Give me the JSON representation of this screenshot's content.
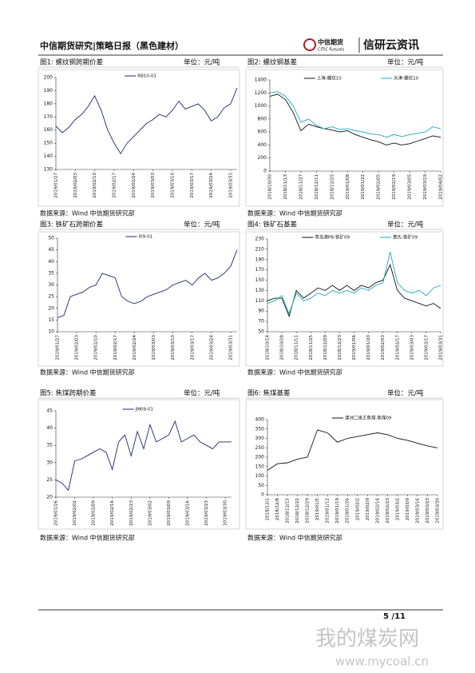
{
  "header": {
    "title": "中信期货研究|策略日报（黑色建材）",
    "logo_cn": "中信期货",
    "logo_en": "CITIC Futures",
    "brand": "信研云资讯"
  },
  "footer": {
    "page": "5 /11"
  },
  "watermark": {
    "cn": "我的煤炭网",
    "url": "www.mycoal.cn"
  },
  "chart_data": [
    {
      "type": "line",
      "title": "图1: 螺纹钢跨期价差",
      "unit": "单位：元/吨",
      "source": "数据来源：Wind  中信期货研究部",
      "categories": [
        "2019/01/27",
        null,
        null,
        "2019/02/03",
        null,
        null,
        "2019/02/10",
        null,
        null,
        "2019/02/17",
        null,
        null,
        "2019/02/24",
        null,
        null,
        "2019/03/03",
        null,
        null,
        "2019/03/10",
        null,
        null,
        "2019/03/17",
        null,
        null,
        "2019/03/24",
        null,
        null,
        "2019/03/31",
        null
      ],
      "series": [
        {
          "name": "RB10-01",
          "color": "#1a2a6c",
          "values": [
            163,
            158,
            162,
            168,
            172,
            178,
            186,
            175,
            160,
            150,
            142,
            150,
            155,
            160,
            165,
            168,
            172,
            170,
            175,
            182,
            176,
            178,
            180,
            175,
            167,
            170,
            177,
            180,
            192
          ]
        }
      ],
      "ylim": [
        130,
        200
      ],
      "yticks": [
        130,
        140,
        150,
        160,
        170,
        180,
        190,
        200
      ]
    },
    {
      "type": "line",
      "title": "图2: 螺纹钢基差",
      "unit": "单位：元/吨",
      "source": "数据来源：Wind  中信期货研究部",
      "categories": [
        "2018/10/30",
        null,
        "2018/11/13",
        null,
        "2018/11/27",
        null,
        "2018/12/11",
        null,
        "2018/12/25",
        null,
        "2019/01/08",
        null,
        "2019/01/22",
        null,
        "2019/02/05",
        null,
        "2019/02/19",
        null,
        "2019/03/05",
        null,
        "2019/03/19",
        null,
        "2019/04/02"
      ],
      "series": [
        {
          "name": "上海-螺纹10",
          "color": "#111111",
          "values": [
            1150,
            1180,
            1100,
            900,
            620,
            720,
            680,
            650,
            630,
            600,
            620,
            560,
            520,
            480,
            450,
            400,
            430,
            400,
            420,
            460,
            500,
            540,
            520
          ]
        },
        {
          "name": "天津-螺纹10",
          "color": "#19a7c0",
          "values": [
            1200,
            1220,
            1150,
            1000,
            750,
            800,
            700,
            650,
            680,
            640,
            650,
            620,
            600,
            570,
            560,
            520,
            560,
            530,
            560,
            580,
            600,
            680,
            650
          ]
        }
      ],
      "ylim": [
        0,
        1400
      ],
      "yticks": [
        0,
        200,
        400,
        600,
        800,
        1000,
        1200,
        1400
      ]
    },
    {
      "type": "line",
      "title": "图3: 铁矿石跨期价差",
      "unit": "单位：元/吨",
      "source": "数据来源：Wind  中信期货研究部",
      "categories": [
        "2019/01/27",
        null,
        null,
        "2019/02/03",
        null,
        null,
        "2019/02/10",
        null,
        null,
        "2019/02/17",
        null,
        null,
        "2019/02/24",
        null,
        null,
        "2019/03/03",
        null,
        null,
        "2019/03/10",
        null,
        null,
        "2019/03/17",
        null,
        null,
        "2019/03/24",
        null,
        null,
        "2019/03/31",
        null
      ],
      "series": [
        {
          "name": "I09-01",
          "color": "#1a2a6c",
          "values": [
            16,
            17,
            25,
            26,
            27,
            29,
            30,
            35,
            34,
            33,
            25,
            23,
            22,
            23,
            25,
            26,
            27,
            28,
            30,
            31,
            32,
            30,
            33,
            35,
            32,
            33,
            35,
            38,
            45
          ]
        }
      ],
      "ylim": [
        10,
        50
      ],
      "yticks": [
        10,
        15,
        20,
        25,
        30,
        35,
        40,
        45,
        50
      ]
    },
    {
      "type": "line",
      "title": "图4: 铁矿石基差",
      "unit": "单位：元/吨",
      "source": "数据来源：Wind  中信期货研究部",
      "categories": [
        "2018/10/14",
        null,
        "2018/10/28",
        null,
        "2018/11/11",
        null,
        "2018/11/25",
        null,
        "2018/12/09",
        null,
        "2018/12/23",
        null,
        "2019/01/06",
        null,
        "2019/01/20",
        null,
        "2019/02/03",
        null,
        "2019/02/17",
        null,
        "2019/03/03",
        null,
        "2019/03/17",
        null,
        "2019/03/31"
      ],
      "series": [
        {
          "name": "青岛港PB-铁矿09",
          "color": "#111111",
          "values": [
            110,
            115,
            115,
            80,
            130,
            115,
            125,
            135,
            130,
            140,
            130,
            140,
            130,
            140,
            135,
            145,
            150,
            180,
            130,
            115,
            110,
            105,
            100,
            105,
            95
          ]
        },
        {
          "name": "普氏-铁矿09",
          "color": "#19a7c0",
          "values": [
            105,
            110,
            120,
            85,
            125,
            110,
            115,
            125,
            120,
            130,
            125,
            130,
            125,
            135,
            130,
            140,
            145,
            205,
            145,
            130,
            125,
            130,
            120,
            135,
            140
          ]
        }
      ],
      "ylim": [
        50,
        230
      ],
      "yticks": [
        50,
        70,
        90,
        110,
        130,
        150,
        170,
        190,
        210,
        230
      ]
    },
    {
      "type": "line",
      "title": "图5: 焦煤跨期价差",
      "unit": "单位：元/吨",
      "source": "数据来源：Wind  中信期货研究部",
      "categories": [
        "2019/01/26",
        null,
        null,
        "2019/02/02",
        null,
        null,
        "2019/02/09",
        null,
        null,
        "2019/02/16",
        null,
        null,
        "2019/02/23",
        null,
        null,
        "2019/03/02",
        null,
        null,
        "2019/03/09",
        null,
        null,
        "2019/03/16",
        null,
        null,
        "2019/03/23",
        null,
        null,
        "2019/03/30",
        null
      ],
      "series": [
        {
          "name": "JM09-01",
          "color": "#1a2a6c",
          "values": [
            25,
            24,
            22,
            30.5,
            31,
            32,
            33,
            34,
            33,
            28,
            36,
            38,
            32,
            39,
            34,
            41,
            36,
            37,
            38,
            42,
            36,
            37,
            38,
            36,
            35,
            34,
            36,
            36,
            36
          ]
        }
      ],
      "ylim": [
        20,
        45
      ],
      "yticks": [
        20,
        25,
        30,
        35,
        40,
        45
      ]
    },
    {
      "type": "line",
      "title": "图6: 焦煤基差",
      "unit": "单位：元/吨",
      "source": "数据来源：Wind  中信期货研究部",
      "categories": [
        "2018/12/1",
        "2018/12/8",
        "2018/12/15",
        "2018/12/22",
        "2018/12/29",
        "2019/01/5",
        "2019/01/12",
        "2019/01/19",
        "2019/01/26",
        "2019/02/2",
        "2019/02/9",
        "2019/02/16",
        "2019/02/23",
        "2019/03/2",
        "2019/03/9",
        "2019/03/16",
        "2019/03/23",
        "2019/03/30"
      ],
      "series": [
        {
          "name": "澳洲二级主焦煤-焦煤09",
          "color": "#111111",
          "values": [
            130,
            165,
            170,
            190,
            200,
            345,
            330,
            280,
            300,
            310,
            320,
            330,
            320,
            300,
            290,
            275,
            260,
            250
          ]
        }
      ],
      "ylim": [
        0,
        400
      ],
      "yticks": [
        0,
        50,
        100,
        150,
        200,
        250,
        300,
        350,
        400
      ]
    }
  ]
}
